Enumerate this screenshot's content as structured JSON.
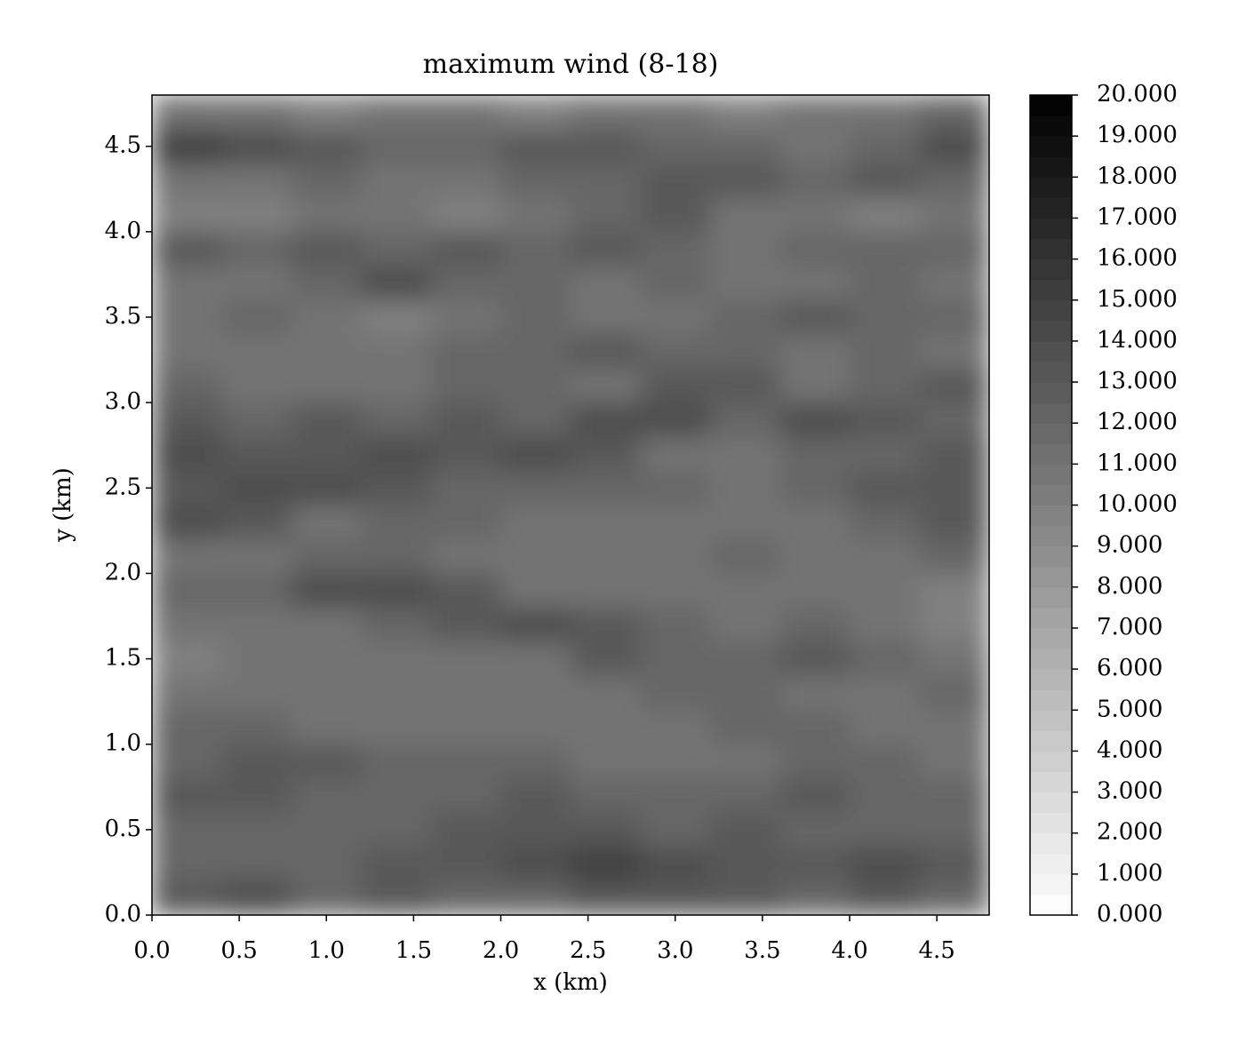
{
  "chart_data": {
    "type": "heatmap",
    "title": "maximum wind (8-18)",
    "xlabel": "x (km)",
    "ylabel": "y (km)",
    "xlim": [
      0,
      4.8
    ],
    "ylim": [
      0,
      4.8
    ],
    "xticks": [
      {
        "value": 0,
        "label": "0.0"
      },
      0.5,
      {
        "value": 1,
        "label": "1.0"
      },
      1.5,
      {
        "value": 2,
        "label": "2.0"
      },
      2.5,
      {
        "value": 3,
        "label": "3.0"
      },
      3.5,
      {
        "value": 4,
        "label": "4.0"
      },
      4.5
    ],
    "yticks": [
      {
        "value": 0,
        "label": "0.0"
      },
      0.5,
      {
        "value": 1,
        "label": "1.0"
      },
      1.5,
      {
        "value": 2,
        "label": "2.0"
      },
      2.5,
      {
        "value": 3,
        "label": "3.0"
      },
      3.5,
      {
        "value": 4,
        "label": "4.0"
      },
      4.5
    ],
    "colormap": "gray_r",
    "clim": [
      0,
      20
    ],
    "cticks": [
      {
        "value": 0,
        "label": "0.000"
      },
      {
        "value": 1,
        "label": "1.000"
      },
      {
        "value": 2,
        "label": "2.000"
      },
      {
        "value": 3,
        "label": "3.000"
      },
      {
        "value": 4,
        "label": "4.000"
      },
      {
        "value": 5,
        "label": "5.000"
      },
      {
        "value": 6,
        "label": "6.000"
      },
      {
        "value": 7,
        "label": "7.000"
      },
      {
        "value": 8,
        "label": "8.000"
      },
      {
        "value": 9,
        "label": "9.000"
      },
      {
        "value": 10,
        "label": "10.000"
      },
      {
        "value": 11,
        "label": "11.000"
      },
      {
        "value": 12,
        "label": "12.000"
      },
      {
        "value": 13,
        "label": "13.000"
      },
      {
        "value": 14,
        "label": "14.000"
      },
      {
        "value": 15,
        "label": "15.000"
      },
      {
        "value": 16,
        "label": "16.000"
      },
      {
        "value": 17,
        "label": "17.000"
      },
      {
        "value": 18,
        "label": "18.000"
      },
      {
        "value": 19,
        "label": "19.000"
      },
      {
        "value": 20,
        "label": "20.000"
      }
    ],
    "z": [
      [
        13,
        14,
        12,
        13,
        12,
        12,
        13,
        13,
        13,
        12,
        13,
        12
      ],
      [
        12,
        12,
        12,
        13,
        13,
        14,
        15,
        14,
        13,
        13,
        14,
        13
      ],
      [
        12,
        12,
        12,
        12,
        13,
        13,
        13,
        12,
        13,
        12,
        12,
        12
      ],
      [
        13,
        13,
        12,
        12,
        12,
        13,
        12,
        12,
        12,
        13,
        12,
        12
      ],
      [
        12,
        13,
        13,
        12,
        12,
        12,
        11,
        11,
        11,
        12,
        12,
        11
      ],
      [
        12,
        12,
        11,
        11,
        11,
        11,
        11,
        11,
        12,
        12,
        11,
        11
      ],
      [
        11,
        11,
        11,
        11,
        11,
        11,
        11,
        12,
        12,
        11,
        11,
        12
      ],
      [
        10,
        11,
        11,
        11,
        11,
        11,
        13,
        12,
        12,
        13,
        12,
        11
      ],
      [
        11,
        11,
        11,
        12,
        13,
        14,
        13,
        12,
        11,
        12,
        11,
        10
      ],
      [
        12,
        12,
        14,
        14,
        13,
        11,
        11,
        11,
        11,
        11,
        11,
        10
      ],
      [
        11,
        11,
        12,
        12,
        11,
        11,
        11,
        11,
        12,
        11,
        11,
        12
      ],
      [
        14,
        13,
        11,
        12,
        12,
        11,
        11,
        11,
        11,
        11,
        12,
        13
      ],
      [
        13,
        14,
        14,
        13,
        12,
        12,
        12,
        12,
        11,
        12,
        13,
        13
      ],
      [
        14,
        13,
        13,
        14,
        13,
        14,
        13,
        11,
        11,
        12,
        12,
        13
      ],
      [
        13,
        12,
        13,
        12,
        13,
        12,
        14,
        14,
        12,
        14,
        13,
        12
      ],
      [
        12,
        11,
        11,
        11,
        12,
        12,
        11,
        13,
        13,
        11,
        12,
        13
      ],
      [
        11,
        11,
        11,
        11,
        12,
        12,
        13,
        12,
        12,
        11,
        12,
        11
      ],
      [
        11,
        12,
        11,
        10,
        11,
        12,
        11,
        11,
        12,
        13,
        12,
        12
      ],
      [
        11,
        11,
        12,
        14,
        12,
        12,
        11,
        12,
        11,
        11,
        12,
        11
      ],
      [
        13,
        12,
        13,
        12,
        13,
        12,
        13,
        12,
        11,
        12,
        12,
        12
      ],
      [
        10,
        10,
        11,
        11,
        10,
        11,
        12,
        13,
        11,
        11,
        10,
        11
      ],
      [
        11,
        11,
        12,
        11,
        11,
        12,
        12,
        13,
        13,
        12,
        13,
        12
      ],
      [
        15,
        14,
        13,
        12,
        12,
        13,
        13,
        12,
        12,
        11,
        12,
        14
      ],
      [
        11,
        11,
        10,
        11,
        11,
        10,
        11,
        11,
        10,
        11,
        11,
        12
      ]
    ]
  }
}
